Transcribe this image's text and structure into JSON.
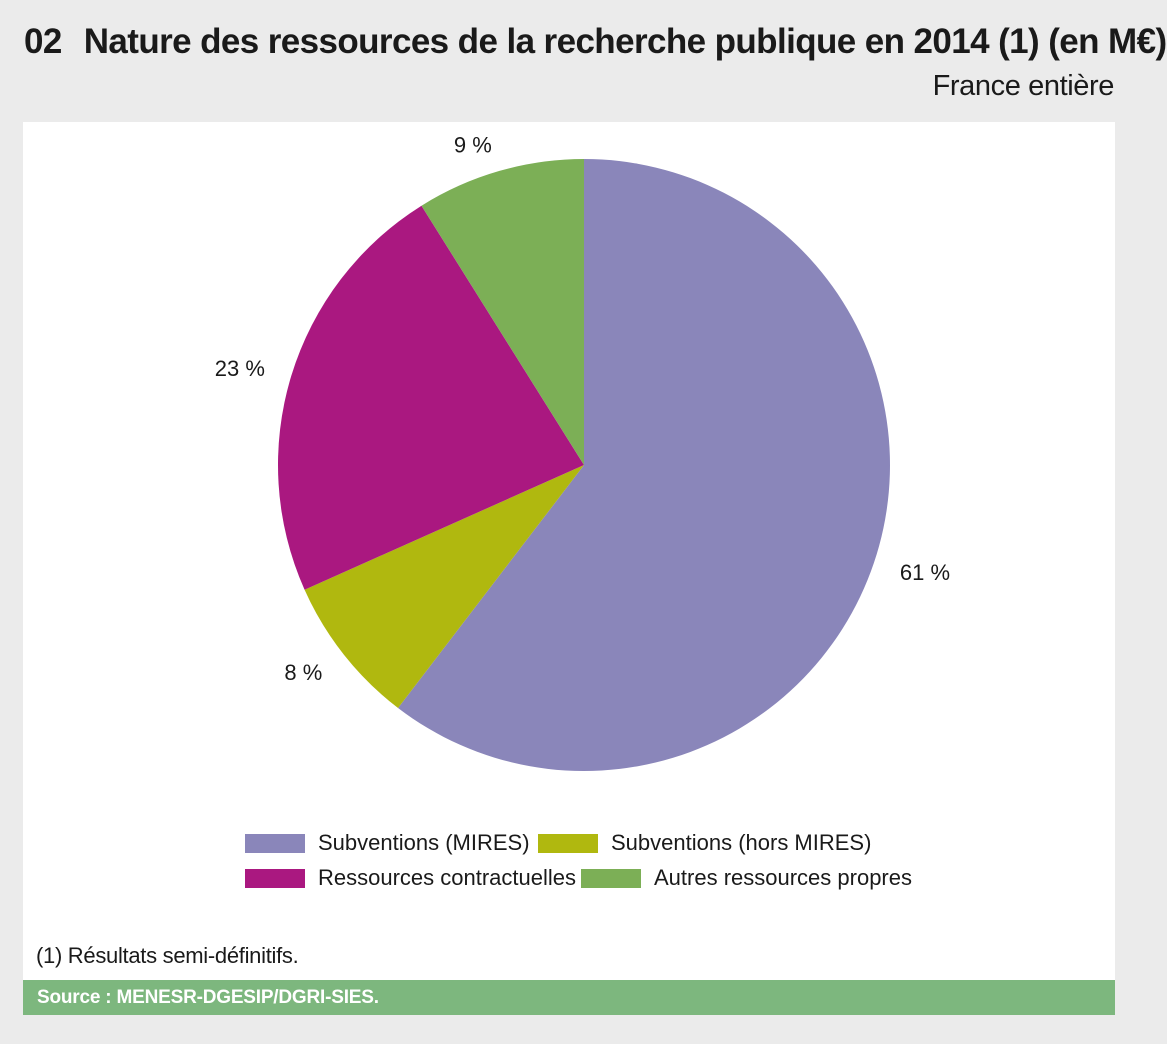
{
  "header": {
    "number": "02",
    "title": "Nature des ressources de la recherche publique en 2014 (1) (en M€)",
    "subtitle": "France entière"
  },
  "chart_data": {
    "type": "pie",
    "title": "Nature des ressources de la recherche publique en 2014 (1) (en M€)",
    "slices": [
      {
        "name": "Subventions (MIRES)",
        "value": 61,
        "label": "61 %",
        "color": "#8a86ba"
      },
      {
        "name": "Subventions (hors MIRES)",
        "value": 8,
        "label": "8 %",
        "color": "#b0b80f"
      },
      {
        "name": "Ressources contractuelles",
        "value": 23,
        "label": "23 %",
        "color": "#aa1880"
      },
      {
        "name": "Autres ressources propres",
        "value": 9,
        "label": "9 %",
        "color": "#7caf56"
      }
    ],
    "start": "12 o'clock",
    "direction": "clockwise",
    "legend": {
      "position": "bottom",
      "rows": [
        [
          "Subventions (MIRES)",
          "Subventions (hors MIRES)"
        ],
        [
          "Ressources contractuelles",
          "Autres ressources propres"
        ]
      ]
    }
  },
  "footnote": "(1) Résultats semi-définitifs.",
  "source": "Source : MENESR-DGESIP/DGRI-SIES.",
  "colors": {
    "background": "#ebebeb",
    "panel": "#ffffff",
    "source_bar": "#7db77e"
  }
}
